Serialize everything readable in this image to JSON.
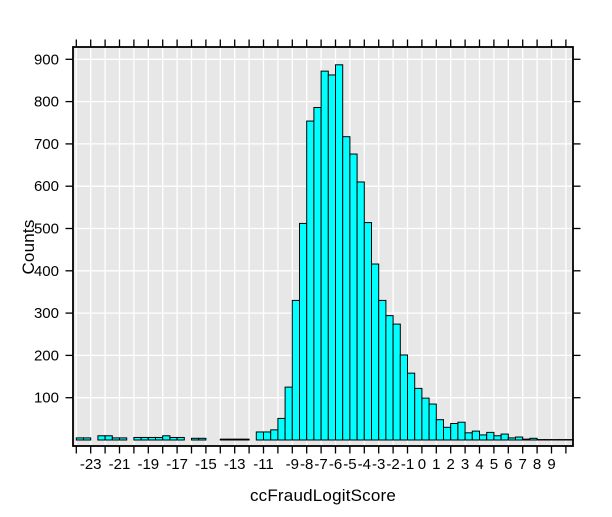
{
  "figure": {
    "background": "#ffffff"
  },
  "chart_data": {
    "type": "bar",
    "subtype": "histogram",
    "title": "",
    "xlabel": "ccFraudLogitScore",
    "ylabel": "Counts",
    "bin_width": 0.5,
    "xlim": [
      -24.2,
      10.55
    ],
    "ylim": [
      -14,
      930
    ],
    "grid": true,
    "legend": "none",
    "colors": {
      "bar_fill": "#00FFFF",
      "bar_border": "#000000",
      "panel_bg": "#E7E7E7",
      "grid_line": "#FFFFFF",
      "axis": "#000000",
      "text": "#000000"
    },
    "x_tick_label_values": [
      -23,
      -21,
      -19,
      -17,
      -15,
      -13,
      -11,
      -9,
      -8,
      -7,
      -6,
      -5,
      -4,
      -3,
      -2,
      -1,
      0,
      1,
      2,
      3,
      4,
      5,
      6,
      7,
      8,
      9
    ],
    "x_tick_labels": [
      "-23",
      "-21",
      "-19",
      "-17",
      "-15",
      "-13",
      "-11",
      "-9",
      "-8",
      "-7",
      "-6",
      "-5",
      "-4",
      "-3",
      "-2",
      "-1",
      "0",
      "1",
      "2",
      "3",
      "4",
      "5",
      "6",
      "7",
      "8",
      "9"
    ],
    "x_minor_tick_range": [
      -24,
      10
    ],
    "x_minor_tick_step": 1,
    "y_ticks": [
      100,
      200,
      300,
      400,
      500,
      600,
      700,
      800,
      900
    ],
    "y_tick_labels": [
      "100",
      "200",
      "300",
      "400",
      "500",
      "600",
      "700",
      "800",
      "900"
    ],
    "bins": [
      [
        -24,
        5
      ],
      [
        -23.5,
        5
      ],
      [
        -23,
        0
      ],
      [
        -22.5,
        10
      ],
      [
        -22,
        10
      ],
      [
        -21.5,
        5
      ],
      [
        -21,
        5
      ],
      [
        -20.5,
        0
      ],
      [
        -20,
        6
      ],
      [
        -19.5,
        6
      ],
      [
        -19,
        6
      ],
      [
        -18.5,
        6
      ],
      [
        -18,
        10
      ],
      [
        -17.5,
        6
      ],
      [
        -17,
        6
      ],
      [
        -16.5,
        0
      ],
      [
        -16,
        4
      ],
      [
        -15.5,
        4
      ],
      [
        -15,
        0
      ],
      [
        -14.5,
        0
      ],
      [
        -14,
        2
      ],
      [
        -13.5,
        2
      ],
      [
        -13,
        2
      ],
      [
        -12.5,
        2
      ],
      [
        -12,
        0
      ],
      [
        -11.5,
        19
      ],
      [
        -11,
        19
      ],
      [
        -10.5,
        24
      ],
      [
        -10,
        51
      ],
      [
        -9.5,
        125
      ],
      [
        -9,
        330
      ],
      [
        -8.5,
        512
      ],
      [
        -8,
        754
      ],
      [
        -7.5,
        786
      ],
      [
        -7,
        872
      ],
      [
        -6.5,
        863
      ],
      [
        -6,
        887
      ],
      [
        -5.5,
        717
      ],
      [
        -5,
        676
      ],
      [
        -4.5,
        610
      ],
      [
        -4,
        514
      ],
      [
        -3.5,
        416
      ],
      [
        -3,
        330
      ],
      [
        -2.5,
        294
      ],
      [
        -2,
        274
      ],
      [
        -1.5,
        201
      ],
      [
        -1,
        158
      ],
      [
        -0.5,
        122
      ],
      [
        0,
        99
      ],
      [
        0.5,
        85
      ],
      [
        1,
        48
      ],
      [
        1.5,
        30
      ],
      [
        2,
        39
      ],
      [
        2.5,
        42
      ],
      [
        3,
        17
      ],
      [
        3.5,
        21
      ],
      [
        4,
        12
      ],
      [
        4.5,
        18
      ],
      [
        5,
        10
      ],
      [
        5.5,
        14
      ],
      [
        6,
        5
      ],
      [
        6.5,
        7
      ],
      [
        7,
        2
      ],
      [
        7.5,
        4
      ],
      [
        8,
        1
      ],
      [
        8.5,
        1
      ],
      [
        9,
        1
      ],
      [
        9.5,
        1
      ],
      [
        10,
        1
      ]
    ]
  }
}
